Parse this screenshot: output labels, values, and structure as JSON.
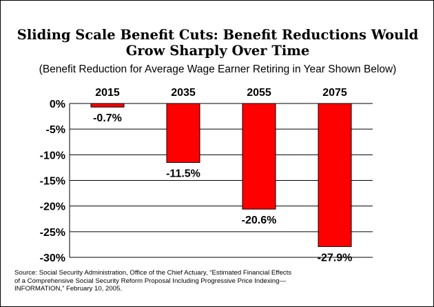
{
  "title_line1": "Sliding Scale Benefit Cuts: Benefit Reductions Would",
  "title_line2": "Grow Sharply Over Time",
  "subtitle": "(Benefit Reduction for Average Wage Earner Retiring in Year Shown Below)",
  "source": [
    "Source:  Social Security Administration, Office of the Chief Actuary, “Estimated Financial Effects",
    "of a Comprehensive Social Security Reform Proposal Including Progressive Price Indexing—",
    "INFORMATION,”  February 10, 2005."
  ],
  "chart_data": {
    "type": "bar",
    "categories": [
      "2015",
      "2035",
      "2055",
      "2075"
    ],
    "values": [
      -0.7,
      -11.5,
      -20.6,
      -27.9
    ],
    "data_labels": [
      "-0.7%",
      "-11.5%",
      "-20.6%",
      "-27.9%"
    ],
    "ylim": [
      -30,
      0
    ],
    "yticks": [
      0,
      -5,
      -10,
      -15,
      -20,
      -25,
      -30
    ],
    "ytick_labels": [
      "0%",
      "-5%",
      "-10%",
      "-15%",
      "-20%",
      "-25%",
      "-30%"
    ],
    "category_axis_position": "top",
    "grid": true,
    "bar_color": "#ff0000",
    "bar_edge_color": "#000000"
  }
}
